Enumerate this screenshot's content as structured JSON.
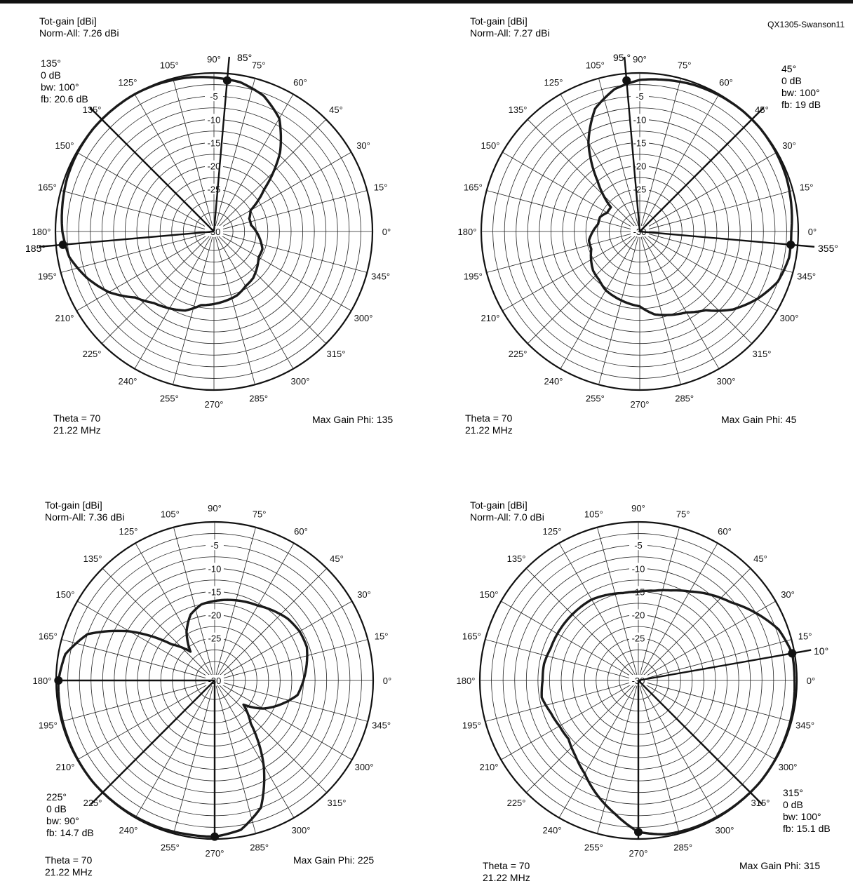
{
  "figure_id": "QX1305-Swanson11",
  "colors": {
    "ink": "#111111",
    "grid": "#222222",
    "pattern": "#1a1a1a"
  },
  "chart_data": [
    {
      "type": "polar",
      "title": "Tot-gain [dBi]",
      "norm": "Norm-All: 7.26 dBi",
      "theta": "Theta = 70",
      "frequency": "21.22 MHz",
      "max_gain_phi": "Max Gain Phi: 135",
      "rlim": [
        -30,
        0
      ],
      "ring_labels": [
        "-5",
        "-10",
        "-15",
        "-20",
        "-25",
        "-30"
      ],
      "angle_labels": [
        "90°",
        "75°",
        "60°",
        "45°",
        "30°",
        "15°",
        "0°",
        "345°",
        "300°",
        "315°",
        "300°",
        "285°",
        "270°",
        "255°",
        "240°",
        "225°",
        "210°",
        "195°",
        "180°",
        "165°",
        "150°",
        "135°",
        "125°",
        "105°"
      ],
      "annotation_lines": [
        {
          "label_lines": [
            "85°"
          ],
          "angle": 85
        },
        {
          "label_lines": [
            "135°",
            "0 dB",
            "bw: 100°",
            "fb: 20.6 dB"
          ],
          "angle": 135
        },
        {
          "label_lines": [
            "185°"
          ],
          "angle": 185
        }
      ],
      "markers": [
        85,
        185
      ],
      "pattern": {
        "phi": [
          0,
          10,
          20,
          30,
          40,
          50,
          60,
          70,
          80,
          90,
          100,
          110,
          120,
          130,
          140,
          150,
          160,
          170,
          180,
          190,
          200,
          210,
          220,
          230,
          240,
          250,
          260,
          270,
          280,
          290,
          300,
          310,
          320,
          330,
          340,
          350,
          360
        ],
        "r": [
          -25,
          -26,
          -26,
          -25,
          -20,
          -12,
          -6,
          -3,
          -1.5,
          -1,
          -0.5,
          -0.2,
          0,
          0,
          0,
          -0.2,
          -0.5,
          -1,
          -1.5,
          -2.5,
          -5,
          -8,
          -12,
          -14,
          -15,
          -16,
          -18,
          -18.5,
          -19,
          -19.5,
          -20.5,
          -21,
          -22,
          -23,
          -23,
          -24,
          -25
        ]
      }
    },
    {
      "type": "polar",
      "title": "Tot-gain [dBi]",
      "norm": "Norm-All: 7.27 dBi",
      "theta": "Theta = 70",
      "frequency": "21.22 MHz",
      "max_gain_phi": "Max Gain Phi: 45",
      "rlim": [
        -30,
        0
      ],
      "ring_labels": [
        "-5",
        "-10",
        "-15",
        "-20",
        "-25",
        "-30"
      ],
      "angle_labels": [
        "90°",
        "75°",
        "60°",
        "45°",
        "30°",
        "15°",
        "0°",
        "345°",
        "300°",
        "315°",
        "300°",
        "285°",
        "270°",
        "255°",
        "240°",
        "225°",
        "210°",
        "195°",
        "180°",
        "165°",
        "150°",
        "135°",
        "125°",
        "105°"
      ],
      "annotation_lines": [
        {
          "label_lines": [
            "95 °"
          ],
          "angle": 95
        },
        {
          "label_lines": [
            "45°",
            "0 dB",
            "bw: 100°",
            "fb: 19 dB"
          ],
          "angle": 45
        },
        {
          "label_lines": [
            "355°"
          ],
          "angle": 355
        }
      ],
      "markers": [
        95,
        355
      ],
      "pattern": {
        "phi": [
          0,
          10,
          20,
          30,
          40,
          50,
          60,
          70,
          80,
          90,
          100,
          110,
          120,
          130,
          140,
          150,
          160,
          170,
          180,
          190,
          200,
          210,
          220,
          230,
          240,
          250,
          260,
          270,
          280,
          290,
          300,
          310,
          320,
          330,
          340,
          350,
          360
        ],
        "r": [
          -1.5,
          -1,
          -0.5,
          -0.2,
          0,
          0,
          -0.2,
          -0.5,
          -1,
          -1.5,
          -3,
          -6,
          -12,
          -20,
          -26,
          -26,
          -25,
          -25,
          -24,
          -23,
          -23,
          -22,
          -21,
          -20.5,
          -19.5,
          -19,
          -18.5,
          -18,
          -16,
          -15,
          -14,
          -12,
          -8,
          -5,
          -2.5,
          -1.5,
          -1.5
        ]
      }
    },
    {
      "type": "polar",
      "title": "Tot-gain [dBi]",
      "norm": "Norm-All: 7.36 dBi",
      "theta": "Theta = 70",
      "frequency": "21.22 MHz",
      "max_gain_phi": "Max Gain Phi: 225",
      "rlim": [
        -30,
        0
      ],
      "ring_labels": [
        "-5",
        "-10",
        "-15",
        "-20",
        "-25",
        "-30"
      ],
      "angle_labels": [
        "90°",
        "75°",
        "60°",
        "45°",
        "30°",
        "15°",
        "0°",
        "345°",
        "300°",
        "315°",
        "300°",
        "285°",
        "270°",
        "255°",
        "240°",
        "225°",
        "210°",
        "195°",
        "180°",
        "165°",
        "150°",
        "135°",
        "125°",
        "105°"
      ],
      "annotation_lines": [
        {
          "label_lines": [
            "225°",
            "0 dB",
            "bw: 90°",
            "fb: 14.7 dB"
          ],
          "angle": 225
        },
        {
          "label_lines": [],
          "angle": 180
        },
        {
          "label_lines": [],
          "angle": 270
        }
      ],
      "markers": [
        180,
        270
      ],
      "pattern": {
        "phi": [
          0,
          10,
          20,
          30,
          40,
          50,
          60,
          70,
          80,
          90,
          100,
          110,
          120,
          130,
          140,
          150,
          160,
          170,
          180,
          190,
          200,
          210,
          220,
          230,
          240,
          250,
          260,
          270,
          280,
          290,
          300,
          310,
          320,
          330,
          340,
          350,
          360
        ],
        "r": [
          -15,
          -14,
          -13,
          -13,
          -13.5,
          -14.5,
          -15.5,
          -16,
          -16.5,
          -17,
          -17.5,
          -19,
          -22,
          -26,
          -22,
          -13,
          -5,
          -1.5,
          -0.5,
          -0.3,
          -0.2,
          -0.1,
          0,
          -0.1,
          -0.2,
          -0.3,
          -0.5,
          -0.5,
          -1.5,
          -5,
          -13,
          -22,
          -26,
          -22,
          -19,
          -16,
          -15
        ]
      }
    },
    {
      "type": "polar",
      "title": "Tot-gain [dBi]",
      "norm": "Norm-All: 7.0 dBi",
      "theta": "Theta = 70",
      "frequency": "21.22 MHz",
      "max_gain_phi": "Max Gain Phi: 315",
      "rlim": [
        -30,
        0
      ],
      "ring_labels": [
        "-5",
        "-10",
        "-15",
        "-20",
        "-25",
        "-30"
      ],
      "angle_labels": [
        "90°",
        "75°",
        "60°",
        "45°",
        "30°",
        "15°",
        "0°",
        "345°",
        "300°",
        "315°",
        "300°",
        "285°",
        "270°",
        "255°",
        "240°",
        "225°",
        "210°",
        "195°",
        "180°",
        "165°",
        "150°",
        "135°",
        "125°",
        "105°"
      ],
      "annotation_lines": [
        {
          "label_lines": [
            "10°"
          ],
          "angle": 10
        },
        {
          "label_lines": [
            "315°",
            "0 dB",
            "bw: 100°",
            "fb: 15.1 dB"
          ],
          "angle": 315
        },
        {
          "label_lines": [],
          "angle": 270
        }
      ],
      "markers": [
        10,
        270
      ],
      "pattern": {
        "phi": [
          0,
          10,
          20,
          30,
          40,
          50,
          60,
          70,
          80,
          90,
          100,
          110,
          120,
          130,
          140,
          150,
          160,
          170,
          180,
          190,
          200,
          210,
          220,
          230,
          240,
          250,
          260,
          270,
          280,
          290,
          300,
          310,
          320,
          330,
          340,
          350,
          360
        ],
        "r": [
          -0.5,
          -0.5,
          -2,
          -5,
          -8,
          -10,
          -12,
          -13.5,
          -14.5,
          -15,
          -15,
          -14.5,
          -14,
          -14,
          -14,
          -14,
          -14,
          -13.5,
          -13.5,
          -13,
          -14,
          -14.5,
          -14.5,
          -13,
          -11,
          -8,
          -5,
          -1.5,
          -0.5,
          -0.3,
          -0.2,
          -0.1,
          0,
          -0.1,
          -0.2,
          -0.3,
          -0.5
        ]
      }
    }
  ]
}
